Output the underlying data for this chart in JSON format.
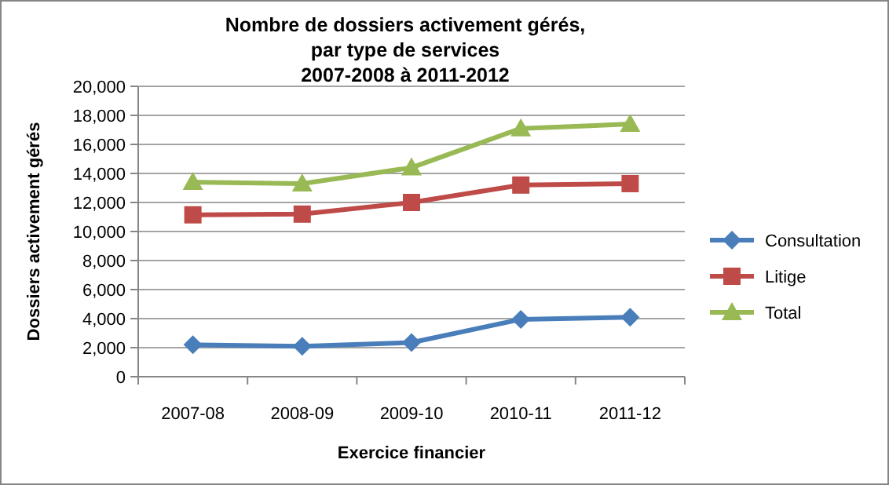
{
  "chart_data": {
    "type": "line",
    "title": "Nombre de dossiers activement gérés,\npar type de services\n2007-2008  à 2011-2012",
    "xlabel": "Exercice financier",
    "ylabel": "Dossiers activement gérés",
    "categories": [
      "2007-08",
      "2008-09",
      "2009-10",
      "2010-11",
      "2011-12"
    ],
    "series": [
      {
        "name": "Consultation",
        "color": "#4a7ebb",
        "marker": "diamond",
        "values": [
          2200,
          2100,
          2350,
          3950,
          4100
        ]
      },
      {
        "name": "Litige",
        "color": "#be4b48",
        "marker": "square",
        "values": [
          11150,
          11200,
          12000,
          13200,
          13300
        ]
      },
      {
        "name": "Total",
        "color": "#98b954",
        "marker": "triangle",
        "values": [
          13400,
          13300,
          14400,
          17100,
          17400
        ]
      }
    ],
    "ylim": [
      0,
      20000
    ],
    "yticks": [
      {
        "value": 0,
        "label": "0"
      },
      {
        "value": 2000,
        "label": "2,000"
      },
      {
        "value": 4000,
        "label": "4,000"
      },
      {
        "value": 6000,
        "label": "6,000"
      },
      {
        "value": 8000,
        "label": "8,000"
      },
      {
        "value": 10000,
        "label": "10,000"
      },
      {
        "value": 12000,
        "label": "12,000"
      },
      {
        "value": 14000,
        "label": "14,000"
      },
      {
        "value": 16000,
        "label": "16,000"
      },
      {
        "value": 18000,
        "label": "18,000"
      },
      {
        "value": 20000,
        "label": "20,000"
      }
    ],
    "grid": "y",
    "legend": "right"
  }
}
